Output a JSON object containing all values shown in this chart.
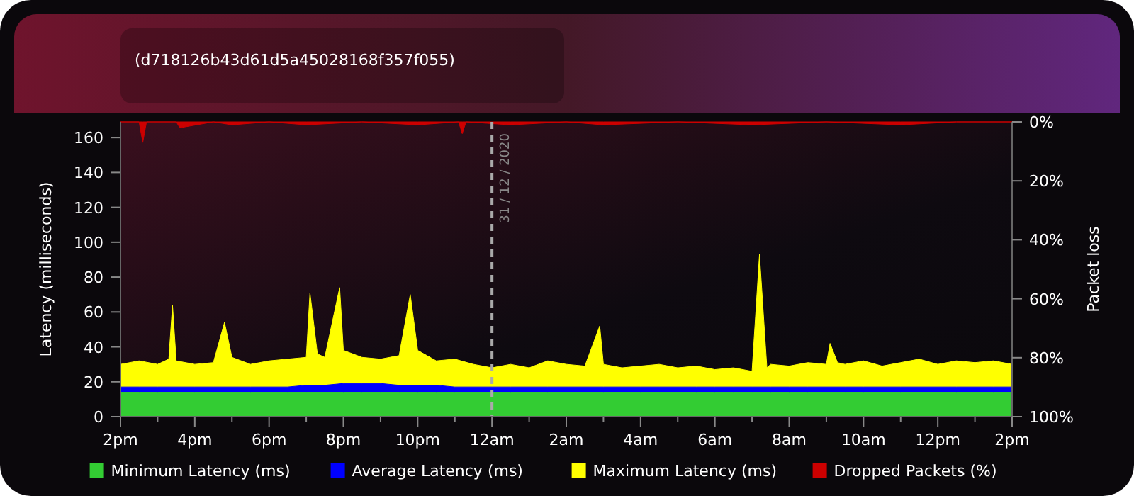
{
  "chart_data": {
    "type": "area",
    "subtitle": "(d718126b43d61d5a45028168f357f055)",
    "ylabel": "Latency (milliseconds)",
    "y2label": "Packet loss",
    "xlim": [
      "2020-12-30T14:00",
      "2020-12-31T14:00"
    ],
    "xticks": [
      {
        "value": "2020-12-30T14:00",
        "label": "2pm"
      },
      {
        "value": "2020-12-30T15:00",
        "label": null
      },
      {
        "value": "2020-12-30T16:00",
        "label": "4pm"
      },
      {
        "value": "2020-12-30T17:00",
        "label": null
      },
      {
        "value": "2020-12-30T18:00",
        "label": "6pm"
      },
      {
        "value": "2020-12-30T19:00",
        "label": null
      },
      {
        "value": "2020-12-30T20:00",
        "label": "8pm"
      },
      {
        "value": "2020-12-30T21:00",
        "label": null
      },
      {
        "value": "2020-12-30T22:00",
        "label": "10pm"
      },
      {
        "value": "2020-12-30T23:00",
        "label": null
      },
      {
        "value": "2020-12-31T00:00",
        "label": "12am"
      },
      {
        "value": "2020-12-31T01:00",
        "label": null
      },
      {
        "value": "2020-12-31T02:00",
        "label": "2am"
      },
      {
        "value": "2020-12-31T03:00",
        "label": null
      },
      {
        "value": "2020-12-31T04:00",
        "label": "4am"
      },
      {
        "value": "2020-12-31T05:00",
        "label": null
      },
      {
        "value": "2020-12-31T06:00",
        "label": "6am"
      },
      {
        "value": "2020-12-31T07:00",
        "label": null
      },
      {
        "value": "2020-12-31T08:00",
        "label": "8am"
      },
      {
        "value": "2020-12-31T09:00",
        "label": null
      },
      {
        "value": "2020-12-31T10:00",
        "label": "10am"
      },
      {
        "value": "2020-12-31T11:00",
        "label": null
      },
      {
        "value": "2020-12-31T12:00",
        "label": "12pm"
      },
      {
        "value": "2020-12-31T13:00",
        "label": null
      },
      {
        "value": "2020-12-31T14:00",
        "label": "2pm"
      }
    ],
    "ylim": [
      0,
      169
    ],
    "yticks": [
      0,
      20,
      40,
      60,
      80,
      100,
      120,
      140,
      160
    ],
    "y2lim": [
      100,
      0
    ],
    "y2ticks": [
      {
        "value": 0,
        "label": "0%"
      },
      {
        "value": 20,
        "label": "20%"
      },
      {
        "value": 40,
        "label": "40%"
      },
      {
        "value": 60,
        "label": "60%"
      },
      {
        "value": 80,
        "label": "80%"
      },
      {
        "value": 100,
        "label": "100%"
      }
    ],
    "x": [
      "2020-12-30T14:00",
      "2020-12-30T14:30",
      "2020-12-30T15:00",
      "2020-12-30T15:30",
      "2020-12-30T16:00",
      "2020-12-30T16:30",
      "2020-12-30T17:00",
      "2020-12-30T17:30",
      "2020-12-30T18:00",
      "2020-12-30T18:30",
      "2020-12-30T19:00",
      "2020-12-30T19:30",
      "2020-12-30T20:00",
      "2020-12-30T20:30",
      "2020-12-30T21:00",
      "2020-12-30T21:30",
      "2020-12-30T22:00",
      "2020-12-30T22:30",
      "2020-12-30T23:00",
      "2020-12-30T23:30",
      "2020-12-31T00:00",
      "2020-12-31T00:30",
      "2020-12-31T01:00",
      "2020-12-31T01:30",
      "2020-12-31T02:00",
      "2020-12-31T02:30",
      "2020-12-31T03:00",
      "2020-12-31T03:30",
      "2020-12-31T04:00",
      "2020-12-31T04:30",
      "2020-12-31T05:00",
      "2020-12-31T05:30",
      "2020-12-31T06:00",
      "2020-12-31T06:30",
      "2020-12-31T07:00",
      "2020-12-31T07:30",
      "2020-12-31T08:00",
      "2020-12-31T08:30",
      "2020-12-31T09:00",
      "2020-12-31T09:30",
      "2020-12-31T10:00",
      "2020-12-31T10:30",
      "2020-12-31T11:00",
      "2020-12-31T11:30",
      "2020-12-31T12:00",
      "2020-12-31T12:30",
      "2020-12-31T13:00",
      "2020-12-31T13:30",
      "2020-12-31T14:00"
    ],
    "series": [
      {
        "name": "Minimum Latency (ms)",
        "color": "#33cc33",
        "values": [
          14,
          14,
          14,
          14,
          14,
          14,
          14,
          14,
          14,
          14,
          14,
          14,
          14,
          14,
          14,
          14,
          14,
          14,
          14,
          14,
          14,
          14,
          14,
          14,
          14,
          14,
          14,
          14,
          14,
          14,
          14,
          14,
          14,
          14,
          14,
          14,
          14,
          14,
          14,
          14,
          14,
          14,
          14,
          14,
          14,
          14,
          14,
          14,
          14
        ]
      },
      {
        "name": "Average Latency (ms)",
        "color": "#0000ff",
        "values": [
          17,
          17,
          17,
          17,
          17,
          17,
          17,
          17,
          17,
          17,
          18,
          18,
          19,
          19,
          19,
          18,
          18,
          18,
          17,
          17,
          17,
          17,
          17,
          17,
          17,
          17,
          17,
          17,
          17,
          17,
          17,
          17,
          17,
          17,
          17,
          17,
          17,
          17,
          17,
          17,
          17,
          17,
          17,
          17,
          17,
          17,
          17,
          17,
          17
        ]
      },
      {
        "name": "Maximum Latency (ms)",
        "color": "#ffff00",
        "x": [
          "2020-12-30T14:00",
          "2020-12-30T14:30",
          "2020-12-30T15:00",
          "2020-12-30T15:18",
          "2020-12-30T15:24",
          "2020-12-30T15:30",
          "2020-12-30T16:00",
          "2020-12-30T16:30",
          "2020-12-30T16:48",
          "2020-12-30T17:00",
          "2020-12-30T17:30",
          "2020-12-30T18:00",
          "2020-12-30T18:30",
          "2020-12-30T19:00",
          "2020-12-30T19:06",
          "2020-12-30T19:18",
          "2020-12-30T19:30",
          "2020-12-30T19:54",
          "2020-12-30T20:00",
          "2020-12-30T20:30",
          "2020-12-30T21:00",
          "2020-12-30T21:30",
          "2020-12-30T21:48",
          "2020-12-30T22:00",
          "2020-12-30T22:30",
          "2020-12-30T23:00",
          "2020-12-30T23:30",
          "2020-12-31T00:00",
          "2020-12-31T00:30",
          "2020-12-31T01:00",
          "2020-12-31T01:30",
          "2020-12-31T02:00",
          "2020-12-31T02:30",
          "2020-12-31T02:54",
          "2020-12-31T03:00",
          "2020-12-31T03:30",
          "2020-12-31T04:00",
          "2020-12-31T04:30",
          "2020-12-31T05:00",
          "2020-12-31T05:30",
          "2020-12-31T06:00",
          "2020-12-31T06:30",
          "2020-12-31T07:00",
          "2020-12-31T07:12",
          "2020-12-31T07:24",
          "2020-12-31T07:30",
          "2020-12-31T08:00",
          "2020-12-31T08:30",
          "2020-12-31T09:00",
          "2020-12-31T09:06",
          "2020-12-31T09:18",
          "2020-12-31T09:30",
          "2020-12-31T10:00",
          "2020-12-31T10:30",
          "2020-12-31T11:00",
          "2020-12-31T11:30",
          "2020-12-31T12:00",
          "2020-12-31T12:30",
          "2020-12-31T13:00",
          "2020-12-31T13:30",
          "2020-12-31T14:00"
        ],
        "values": [
          30,
          32,
          30,
          33,
          64,
          32,
          30,
          31,
          54,
          34,
          30,
          32,
          33,
          34,
          71,
          36,
          34,
          74,
          38,
          34,
          33,
          35,
          70,
          38,
          32,
          33,
          30,
          28,
          30,
          28,
          32,
          30,
          29,
          52,
          30,
          28,
          29,
          30,
          28,
          29,
          27,
          28,
          26,
          93,
          28,
          30,
          29,
          31,
          30,
          42,
          31,
          30,
          32,
          29,
          31,
          33,
          30,
          32,
          31,
          32,
          30
        ]
      },
      {
        "name": "Dropped Packets (%)",
        "color": "#cc0000",
        "axis": "y2",
        "x": [
          "2020-12-30T14:00",
          "2020-12-30T14:30",
          "2020-12-30T14:36",
          "2020-12-30T14:42",
          "2020-12-30T15:30",
          "2020-12-30T15:36",
          "2020-12-30T16:30",
          "2020-12-30T17:00",
          "2020-12-30T18:00",
          "2020-12-30T19:00",
          "2020-12-30T20:30",
          "2020-12-30T22:00",
          "2020-12-30T23:06",
          "2020-12-30T23:12",
          "2020-12-30T23:18",
          "2020-12-31T00:30",
          "2020-12-31T02:00",
          "2020-12-31T03:00",
          "2020-12-31T05:00",
          "2020-12-31T07:00",
          "2020-12-31T09:00",
          "2020-12-31T11:00",
          "2020-12-31T12:30",
          "2020-12-31T14:00"
        ],
        "values": [
          0,
          0,
          7,
          0,
          0,
          2,
          0,
          1,
          0,
          1,
          0,
          1,
          0,
          4,
          0,
          1,
          0,
          1,
          0,
          1,
          0,
          1,
          0,
          0
        ]
      }
    ],
    "ref_lines": [
      {
        "axis": "x",
        "value": "2020-12-31T00:00",
        "label": "31 / 12 / 2020",
        "color": "#aaaaaa",
        "line_style": "dashed"
      }
    ],
    "legend": "bottom"
  }
}
